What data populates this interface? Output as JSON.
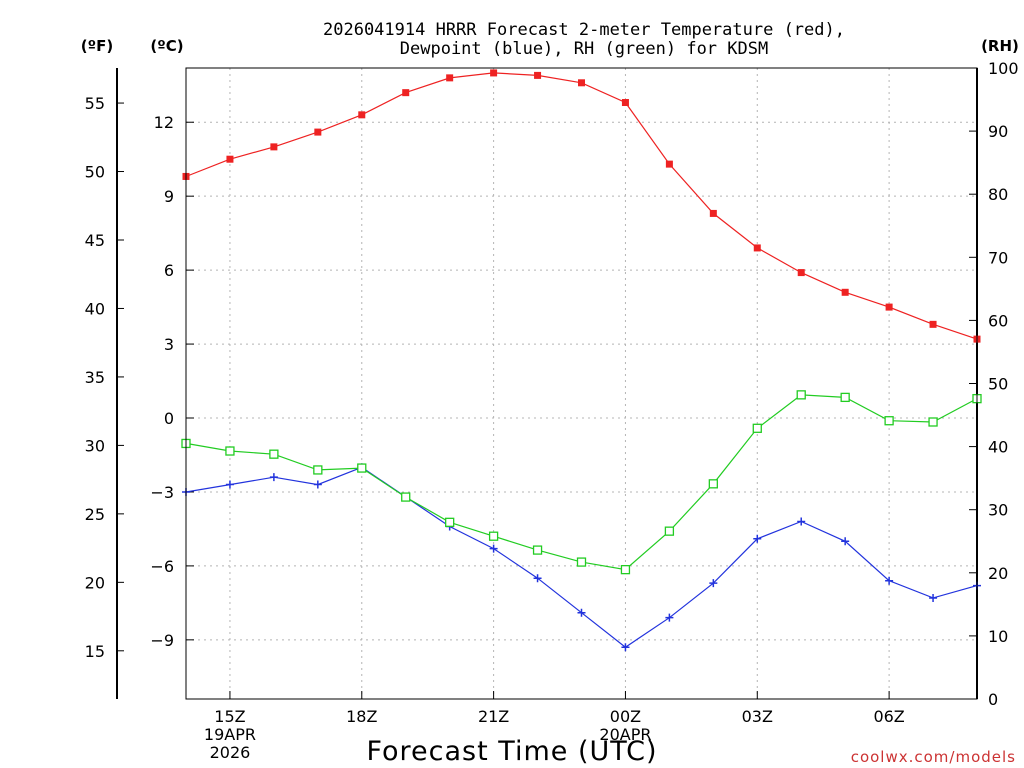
{
  "chart_data": {
    "type": "line",
    "title_line1": "2026041914 HRRR Forecast 2-meter Temperature (red),",
    "title_line2": "Dewpoint (blue), RH (green) for KDSM",
    "xlabel": "Forecast Time (UTC)",
    "credit": "coolwx.com/models",
    "units": {
      "f": "(ºF)",
      "c": "(ºC)",
      "rh": "(RH)"
    },
    "x_hours": [
      14,
      15,
      16,
      17,
      18,
      19,
      20,
      21,
      22,
      23,
      24,
      25,
      26,
      27,
      28,
      29,
      30,
      31,
      32
    ],
    "xlim": [
      14,
      32
    ],
    "x_ticks": [
      {
        "hour": 15,
        "lines": [
          "15Z",
          "19APR",
          "2026"
        ]
      },
      {
        "hour": 18,
        "lines": [
          "18Z"
        ]
      },
      {
        "hour": 21,
        "lines": [
          "21Z"
        ]
      },
      {
        "hour": 24,
        "lines": [
          "00Z",
          "20APR"
        ]
      },
      {
        "hour": 27,
        "lines": [
          "03Z"
        ]
      },
      {
        "hour": 30,
        "lines": [
          "06Z"
        ]
      }
    ],
    "ylim_c": [
      -11.4,
      14.2
    ],
    "ylim_rh": [
      0,
      100
    ],
    "c_ticks": [
      {
        "value": 12,
        "label": "12"
      },
      {
        "value": 9,
        "label": "9"
      },
      {
        "value": 6,
        "label": "6"
      },
      {
        "value": 3,
        "label": "3"
      },
      {
        "value": 0,
        "label": "0"
      },
      {
        "value": -3,
        "label": "−3"
      },
      {
        "value": -6,
        "label": "−6"
      },
      {
        "value": -9,
        "label": "−9"
      }
    ],
    "f_ticks": [
      {
        "value": 55,
        "label": "55"
      },
      {
        "value": 50,
        "label": "50"
      },
      {
        "value": 45,
        "label": "45"
      },
      {
        "value": 40,
        "label": "40"
      },
      {
        "value": 35,
        "label": "35"
      },
      {
        "value": 30,
        "label": "30"
      },
      {
        "value": 25,
        "label": "25"
      },
      {
        "value": 20,
        "label": "20"
      },
      {
        "value": 15,
        "label": "15"
      }
    ],
    "rh_ticks": [
      {
        "value": 100,
        "label": "100"
      },
      {
        "value": 90,
        "label": "90"
      },
      {
        "value": 80,
        "label": "80"
      },
      {
        "value": 70,
        "label": "70"
      },
      {
        "value": 60,
        "label": "60"
      },
      {
        "value": 50,
        "label": "50"
      },
      {
        "value": 40,
        "label": "40"
      },
      {
        "value": 30,
        "label": "30"
      },
      {
        "value": 20,
        "label": "20"
      },
      {
        "value": 10,
        "label": "10"
      },
      {
        "value": 0,
        "label": "0"
      }
    ],
    "series": [
      {
        "name": "Temperature",
        "axis": "c",
        "color": "#ee2222",
        "marker": "filled-square",
        "values": [
          9.8,
          10.5,
          11.0,
          11.6,
          12.3,
          13.2,
          13.8,
          14.0,
          13.9,
          13.6,
          12.8,
          10.3,
          8.3,
          6.9,
          5.9,
          5.1,
          4.5,
          3.8,
          3.2
        ]
      },
      {
        "name": "Dewpoint",
        "axis": "c",
        "color": "#2233dd",
        "marker": "plus",
        "values": [
          -3.0,
          -2.7,
          -2.4,
          -2.7,
          -2.0,
          -3.2,
          -4.4,
          -5.3,
          -6.5,
          -7.9,
          -9.3,
          -8.1,
          -6.7,
          -4.9,
          -4.2,
          -5.0,
          -6.6,
          -7.3,
          -6.8
        ]
      },
      {
        "name": "RH",
        "axis": "rh",
        "color": "#22cc22",
        "marker": "open-square",
        "values": [
          40.5,
          39.3,
          38.8,
          36.3,
          36.6,
          32.0,
          28.0,
          25.8,
          23.6,
          21.7,
          20.5,
          26.6,
          34.1,
          42.9,
          48.2,
          47.8,
          44.1,
          43.9,
          47.6
        ]
      }
    ]
  }
}
